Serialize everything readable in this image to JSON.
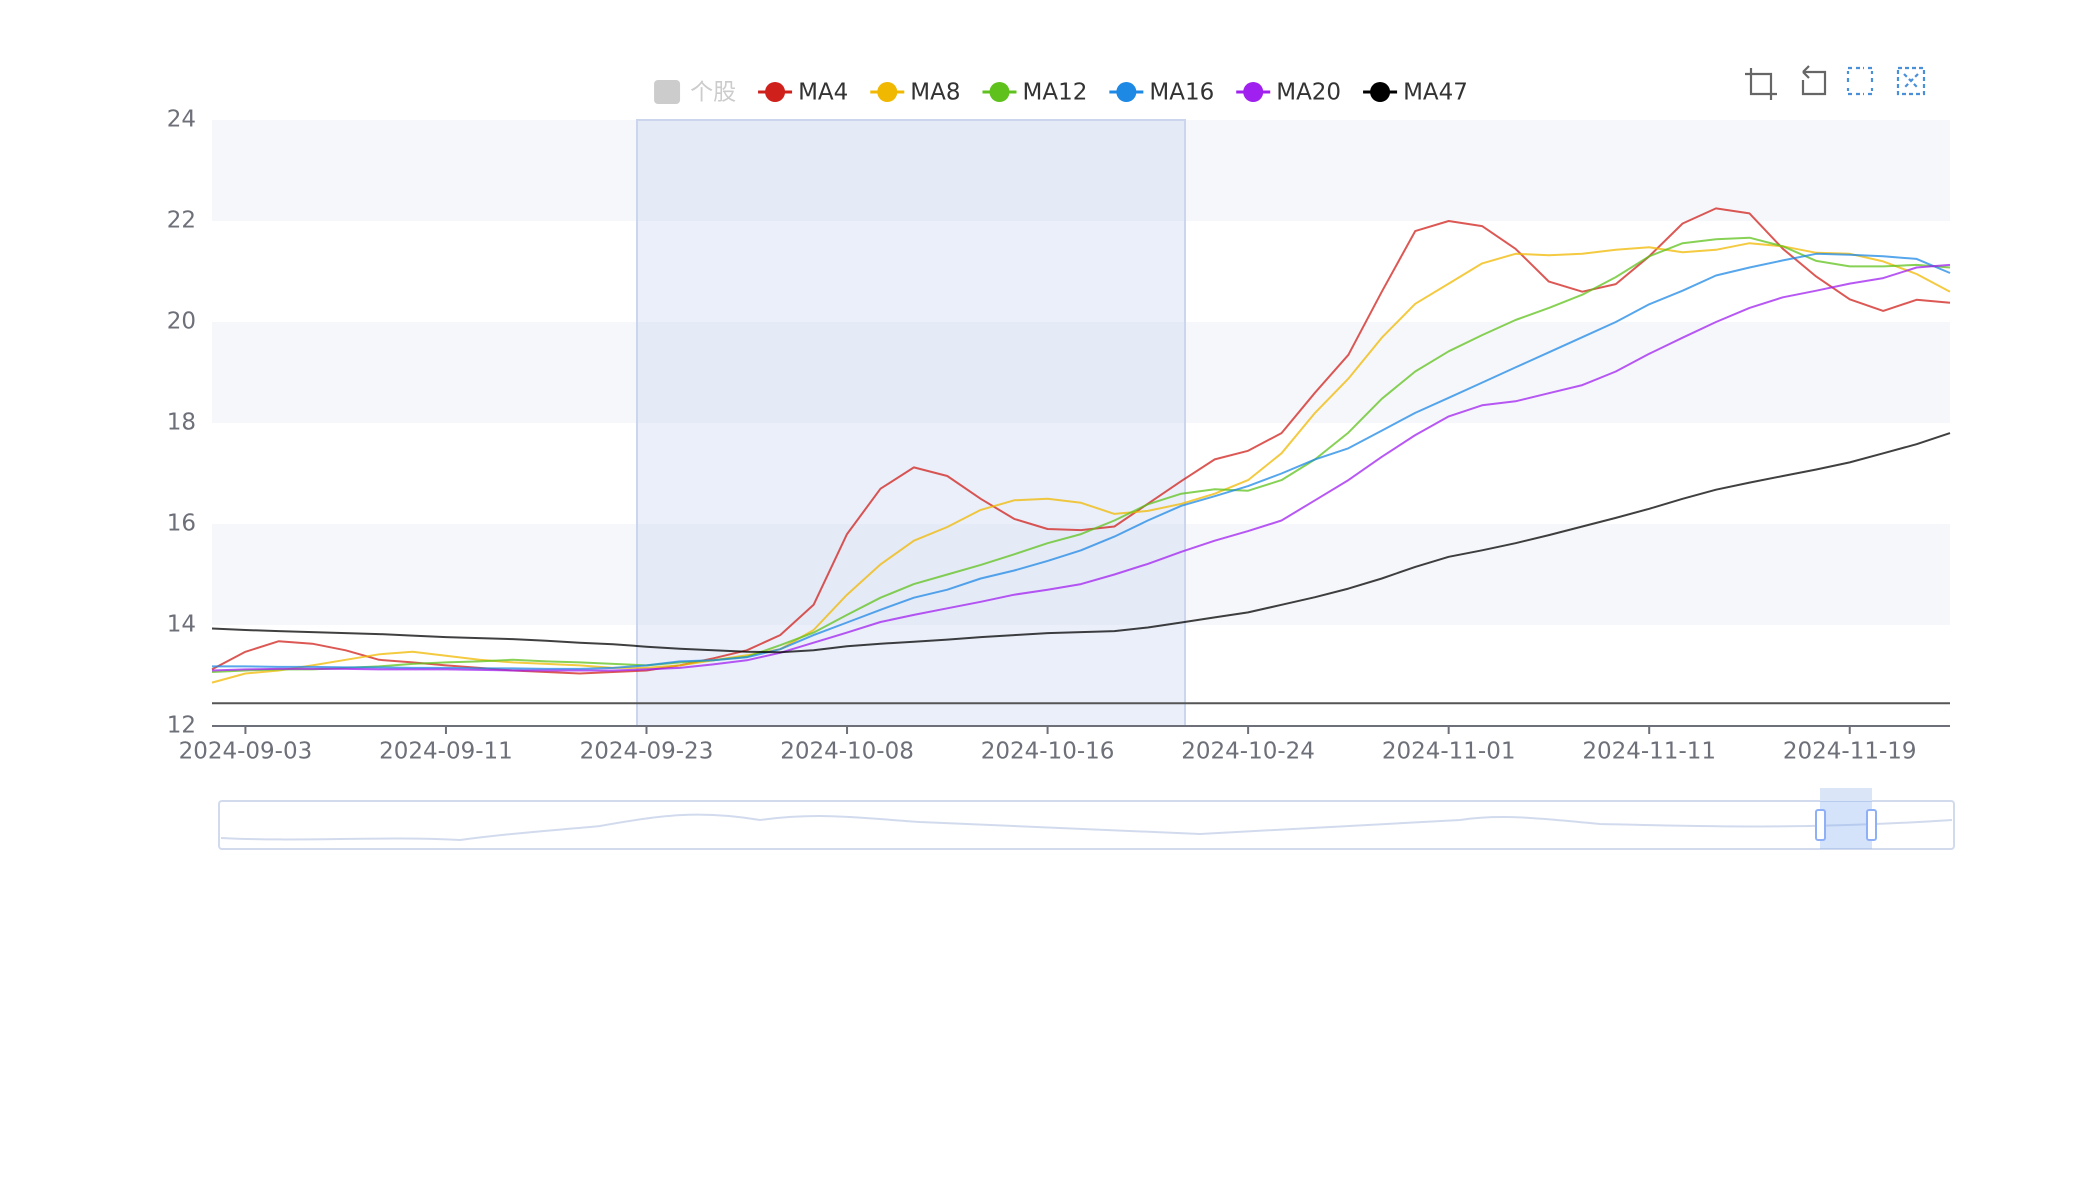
{
  "chart_data": {
    "type": "line",
    "categories": [
      null,
      "2024-09-03",
      null,
      null,
      null,
      null,
      null,
      "2024-09-11",
      null,
      null,
      null,
      null,
      null,
      "2024-09-23",
      null,
      null,
      null,
      null,
      null,
      "2024-10-08",
      null,
      null,
      null,
      null,
      null,
      "2024-10-16",
      null,
      null,
      null,
      null,
      null,
      "2024-10-24",
      null,
      null,
      null,
      null,
      null,
      "2024-11-01",
      null,
      null,
      null,
      null,
      null,
      "2024-11-11",
      null,
      null,
      null,
      null,
      null,
      "2024-11-19",
      null,
      null,
      null
    ],
    "series": [
      {
        "name": "个股",
        "color": "#cccccc",
        "visible": false
      },
      {
        "name": "MA4",
        "color": "#d0201b",
        "values": [
          13.12,
          13.47,
          13.68,
          13.63,
          13.5,
          13.31,
          13.26,
          13.2,
          13.15,
          13.1,
          13.07,
          13.04,
          13.07,
          13.1,
          13.2,
          13.34,
          13.5,
          13.8,
          14.4,
          15.8,
          16.7,
          17.12,
          16.95,
          16.5,
          16.1,
          15.9,
          15.88,
          15.95,
          16.4,
          16.85,
          17.28,
          17.45,
          17.8,
          18.6,
          19.35,
          20.6,
          21.8,
          22.0,
          21.9,
          21.45,
          20.8,
          20.6,
          20.75,
          21.3,
          21.95,
          22.25,
          22.15,
          21.45,
          20.9,
          20.45,
          20.22,
          20.44,
          20.38
        ]
      },
      {
        "name": "MA8",
        "color": "#f0b800",
        "values": [
          12.86,
          13.04,
          13.1,
          13.2,
          13.31,
          13.42,
          13.47,
          13.39,
          13.31,
          13.26,
          13.23,
          13.2,
          13.15,
          13.15,
          13.2,
          13.3,
          13.4,
          13.52,
          13.9,
          14.6,
          15.2,
          15.67,
          15.94,
          16.28,
          16.47,
          16.5,
          16.42,
          16.2,
          16.26,
          16.4,
          16.6,
          16.87,
          17.4,
          18.2,
          18.88,
          19.69,
          20.36,
          20.76,
          21.16,
          21.35,
          21.32,
          21.35,
          21.43,
          21.48,
          21.38,
          21.43,
          21.56,
          21.5,
          21.37,
          21.35,
          21.2,
          20.95,
          20.6
        ]
      },
      {
        "name": "MA12",
        "color": "#5fc21c",
        "values": [
          13.07,
          13.1,
          13.12,
          13.12,
          13.15,
          13.18,
          13.23,
          13.26,
          13.28,
          13.31,
          13.28,
          13.26,
          13.23,
          13.2,
          13.26,
          13.3,
          13.37,
          13.6,
          13.85,
          14.2,
          14.54,
          14.81,
          15.0,
          15.19,
          15.4,
          15.62,
          15.8,
          16.07,
          16.39,
          16.6,
          16.69,
          16.66,
          16.87,
          17.28,
          17.81,
          18.48,
          19.02,
          19.42,
          19.74,
          20.04,
          20.28,
          20.54,
          20.89,
          21.3,
          21.56,
          21.64,
          21.67,
          21.5,
          21.21,
          21.1,
          21.1,
          21.13,
          21.08
        ]
      },
      {
        "name": "MA16",
        "color": "#1e88e5",
        "values": [
          13.18,
          13.18,
          13.17,
          13.17,
          13.16,
          13.16,
          13.15,
          13.15,
          13.14,
          13.14,
          13.13,
          13.13,
          13.15,
          13.2,
          13.28,
          13.3,
          13.36,
          13.52,
          13.8,
          14.05,
          14.3,
          14.54,
          14.7,
          14.92,
          15.08,
          15.27,
          15.48,
          15.75,
          16.07,
          16.36,
          16.55,
          16.75,
          17.0,
          17.28,
          17.5,
          17.85,
          18.2,
          18.5,
          18.8,
          19.1,
          19.4,
          19.7,
          20.0,
          20.35,
          20.62,
          20.92,
          21.08,
          21.22,
          21.35,
          21.33,
          21.3,
          21.25,
          20.97
        ]
      },
      {
        "name": "MA20",
        "color": "#a020f0",
        "values": [
          13.1,
          13.12,
          13.13,
          13.13,
          13.13,
          13.12,
          13.12,
          13.12,
          13.11,
          13.1,
          13.1,
          13.1,
          13.1,
          13.12,
          13.15,
          13.22,
          13.3,
          13.45,
          13.65,
          13.85,
          14.06,
          14.2,
          14.33,
          14.46,
          14.6,
          14.7,
          14.81,
          15.0,
          15.21,
          15.45,
          15.67,
          15.86,
          16.07,
          16.47,
          16.87,
          17.33,
          17.76,
          18.13,
          18.35,
          18.43,
          18.59,
          18.75,
          19.02,
          19.37,
          19.69,
          20.0,
          20.28,
          20.49,
          20.62,
          20.76,
          20.87,
          21.08,
          21.13
        ]
      },
      {
        "name": "MA47",
        "color": "#000000",
        "values": [
          13.93,
          13.9,
          13.88,
          13.86,
          13.84,
          13.82,
          13.79,
          13.76,
          13.74,
          13.72,
          13.69,
          13.65,
          13.62,
          13.57,
          13.53,
          13.5,
          13.47,
          13.46,
          13.5,
          13.58,
          13.63,
          13.67,
          13.71,
          13.76,
          13.8,
          13.84,
          13.86,
          13.88,
          13.95,
          14.05,
          14.15,
          14.25,
          14.4,
          14.55,
          14.72,
          14.92,
          15.15,
          15.35,
          15.48,
          15.62,
          15.78,
          15.95,
          16.12,
          16.3,
          16.5,
          16.68,
          16.82,
          16.95,
          17.08,
          17.22,
          17.4,
          17.58,
          17.8
        ]
      }
    ],
    "reference_line": 12.45,
    "ylim": [
      12,
      24
    ],
    "yticks": [
      12,
      14,
      16,
      18,
      20,
      22,
      24
    ],
    "split_area": true
  }
}
